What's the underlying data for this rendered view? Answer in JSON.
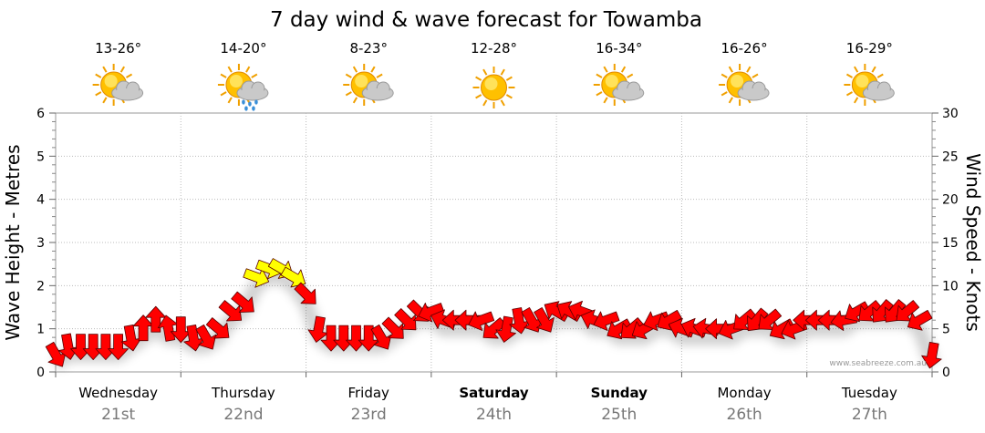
{
  "chart_data": {
    "type": "line",
    "title": "7 day wind & wave forecast for Towamba",
    "y_left_label": "Wave Height - Metres",
    "y_right_label": "Wind Speed - Knots",
    "y_left_range": [
      0,
      6
    ],
    "y_left_ticks": [
      "0",
      "1",
      "2",
      "3",
      "4",
      "5",
      "6"
    ],
    "y_right_range": [
      0,
      30
    ],
    "y_right_ticks": [
      "0",
      "5",
      "10",
      "15",
      "20",
      "25",
      "30"
    ],
    "grid": true,
    "credit": "www.seabreeze.com.au",
    "days": [
      {
        "name": "Wednesday",
        "date": "21st",
        "bold": false,
        "temp": "13-26°",
        "icon": "partly-cloudy-icon"
      },
      {
        "name": "Thursday",
        "date": "22nd",
        "bold": false,
        "temp": "14-20°",
        "icon": "showers-icon"
      },
      {
        "name": "Friday",
        "date": "23rd",
        "bold": false,
        "temp": "8-23°",
        "icon": "partly-cloudy-icon"
      },
      {
        "name": "Saturday",
        "date": "24th",
        "bold": true,
        "temp": "12-28°",
        "icon": "sunny-icon"
      },
      {
        "name": "Sunday",
        "date": "25th",
        "bold": true,
        "temp": "16-34°",
        "icon": "partly-cloudy-icon"
      },
      {
        "name": "Monday",
        "date": "26th",
        "bold": false,
        "temp": "16-26°",
        "icon": "partly-cloudy-icon"
      },
      {
        "name": "Tuesday",
        "date": "27th",
        "bold": false,
        "temp": "16-29°",
        "icon": "partly-cloudy-icon"
      }
    ],
    "wind_series": {
      "x_days": [
        0.0,
        0.1,
        0.2,
        0.3,
        0.4,
        0.5,
        0.6,
        0.7,
        0.8,
        0.9,
        1.0,
        1.1,
        1.2,
        1.3,
        1.4,
        1.5,
        1.6,
        1.7,
        1.8,
        1.9,
        2.0,
        2.1,
        2.2,
        2.3,
        2.4,
        2.5,
        2.6,
        2.7,
        2.8,
        2.9,
        3.0,
        3.1,
        3.2,
        3.3,
        3.4,
        3.5,
        3.6,
        3.7,
        3.8,
        3.9,
        4.0,
        4.1,
        4.2,
        4.3,
        4.4,
        4.5,
        4.6,
        4.7,
        4.8,
        4.9,
        5.0,
        5.1,
        5.2,
        5.3,
        5.4,
        5.5,
        5.6,
        5.7,
        5.8,
        5.9,
        6.0,
        6.1,
        6.2,
        6.3,
        6.4,
        6.5,
        6.6,
        6.7,
        6.8,
        6.9,
        7.0
      ],
      "speed_knots": [
        2,
        3,
        3,
        3,
        3,
        3,
        4,
        5,
        6,
        5,
        5,
        4,
        4,
        5,
        7,
        8,
        11,
        12,
        12,
        11,
        9,
        5,
        4,
        4,
        4,
        4,
        4,
        5,
        6,
        7,
        7,
        6,
        6,
        6,
        6,
        5,
        5,
        6,
        6,
        6,
        7,
        7,
        7,
        6,
        6,
        5,
        5,
        5,
        6,
        6,
        5,
        5,
        5,
        5,
        5,
        6,
        6,
        6,
        5,
        5,
        6,
        6,
        6,
        6,
        7,
        7,
        7,
        7,
        7,
        6,
        2
      ],
      "direction_deg": [
        60,
        80,
        90,
        90,
        90,
        90,
        80,
        270,
        270,
        260,
        90,
        80,
        60,
        40,
        40,
        40,
        20,
        20,
        30,
        30,
        45,
        100,
        90,
        90,
        90,
        90,
        60,
        45,
        45,
        45,
        160,
        200,
        180,
        180,
        160,
        140,
        100,
        80,
        60,
        60,
        210,
        210,
        200,
        200,
        160,
        150,
        140,
        150,
        160,
        150,
        200,
        200,
        190,
        180,
        160,
        140,
        130,
        140,
        150,
        160,
        180,
        180,
        180,
        170,
        150,
        140,
        130,
        130,
        140,
        150,
        100
      ],
      "strong_threshold_knots": 11
    }
  }
}
